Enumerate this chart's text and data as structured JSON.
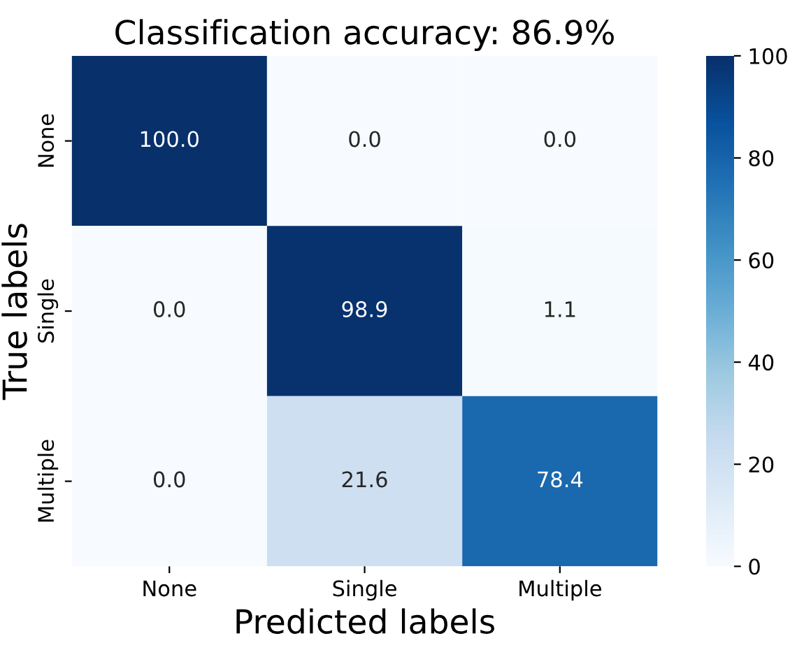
{
  "chart_data": {
    "type": "heatmap",
    "title": "Classification accuracy: 86.9%",
    "xlabel": "Predicted labels",
    "ylabel": "True labels",
    "categories": [
      "None",
      "Single",
      "Multiple"
    ],
    "y_categories": [
      "None",
      "Single",
      "Multiple"
    ],
    "cells": [
      [
        100.0,
        0.0,
        0.0
      ],
      [
        0.0,
        98.9,
        1.1
      ],
      [
        0.0,
        21.6,
        78.4
      ]
    ],
    "cell_labels": [
      [
        "100.0",
        "0.0",
        "0.0"
      ],
      [
        "0.0",
        "98.9",
        "1.1"
      ],
      [
        "0.0",
        "21.6",
        "78.4"
      ]
    ],
    "clim": [
      0,
      100
    ],
    "cticks": [
      0,
      20,
      40,
      60,
      80,
      100
    ]
  }
}
